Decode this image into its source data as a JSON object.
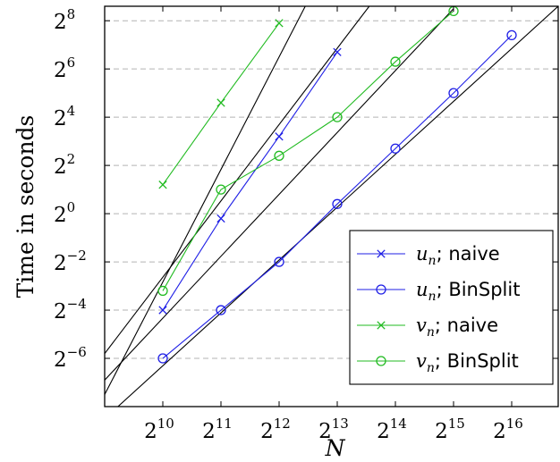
{
  "chart_data": {
    "type": "line",
    "xlabel": "N",
    "ylabel": "Time in seconds",
    "x_scale": "log2",
    "y_scale": "log2",
    "xlim_exp": [
      9,
      16.8
    ],
    "ylim_exp": [
      -8,
      8.6
    ],
    "x_ticks": [
      {
        "base": "2",
        "exp": "10",
        "value": 10
      },
      {
        "base": "2",
        "exp": "11",
        "value": 11
      },
      {
        "base": "2",
        "exp": "12",
        "value": 12
      },
      {
        "base": "2",
        "exp": "13",
        "value": 13
      },
      {
        "base": "2",
        "exp": "14",
        "value": 14
      },
      {
        "base": "2",
        "exp": "15",
        "value": 15
      },
      {
        "base": "2",
        "exp": "16",
        "value": 16
      }
    ],
    "y_ticks": [
      {
        "base": "2",
        "exp": "8",
        "value": 8
      },
      {
        "base": "2",
        "exp": "6",
        "value": 6
      },
      {
        "base": "2",
        "exp": "4",
        "value": 4
      },
      {
        "base": "2",
        "exp": "2",
        "value": 2
      },
      {
        "base": "2",
        "exp": "0",
        "value": 0
      },
      {
        "base": "2",
        "exp": "−2",
        "value": -2
      },
      {
        "base": "2",
        "exp": "−4",
        "value": -4
      },
      {
        "base": "2",
        "exp": "−6",
        "value": -6
      }
    ],
    "grid": "horizontal dashed",
    "legend_position": "bottom-right",
    "series": [
      {
        "var": "u",
        "sub": "n",
        "suffix": "; naive",
        "color": "#1f1fe6",
        "marker": "cross",
        "x": [
          10,
          11,
          12,
          13
        ],
        "y": [
          -4.0,
          -0.2,
          3.2,
          6.7
        ]
      },
      {
        "var": "u",
        "sub": "n",
        "suffix": "; BinSplit",
        "color": "#1f1fe6",
        "marker": "circle",
        "x": [
          10,
          11,
          12,
          13,
          14,
          15,
          16
        ],
        "y": [
          -6.0,
          -4.0,
          -2.0,
          0.4,
          2.7,
          5.0,
          7.4
        ]
      },
      {
        "var": "v",
        "sub": "n",
        "suffix": "; naive",
        "color": "#22bb22",
        "marker": "cross",
        "x": [
          10,
          11,
          12
        ],
        "y": [
          1.2,
          4.6,
          7.9
        ]
      },
      {
        "var": "v",
        "sub": "n",
        "suffix": "; BinSplit",
        "color": "#22bb22",
        "marker": "circle",
        "x": [
          10,
          11,
          12,
          13,
          14,
          15
        ],
        "y": [
          -3.2,
          1.0,
          2.4,
          4.0,
          6.3,
          8.4
        ]
      }
    ],
    "reference_lines": [
      {
        "x": [
          9.0,
          12.45
        ],
        "y": [
          -7.5,
          8.6
        ]
      },
      {
        "x": [
          9.0,
          13.55
        ],
        "y": [
          -5.8,
          8.6
        ]
      },
      {
        "x": [
          9.0,
          15.0
        ],
        "y": [
          -6.9,
          8.5
        ]
      },
      {
        "x": [
          9.0,
          16.8
        ],
        "y": [
          -8.5,
          8.6
        ]
      }
    ]
  }
}
